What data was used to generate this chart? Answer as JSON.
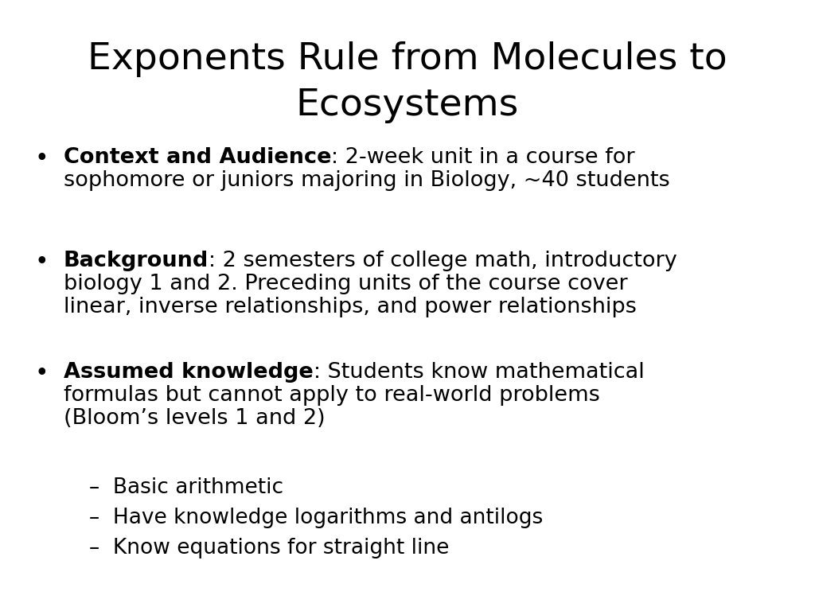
{
  "title_line1": "Exponents Rule from Molecules to",
  "title_line2": "Ecosystems",
  "background_color": "#ffffff",
  "text_color": "#000000",
  "title_fontsize": 34,
  "bullet_fontsize": 19.5,
  "sub_bullet_fontsize": 19,
  "bullets": [
    {
      "bold_part": "Context and Audience",
      "normal_part": ": 2-week unit in a course for\nsophomore or juniors majoring in Biology, ~40 students"
    },
    {
      "bold_part": "Background",
      "normal_part": ": 2 semesters of college math, introductory\nbiology 1 and 2. Preceding units of the course cover\nlinear, inverse relationships, and power relationships"
    },
    {
      "bold_part": "Assumed knowledge",
      "normal_part": ": Students know mathematical\nformulas but cannot apply to real-world problems\n(Bloom’s levels 1 and 2)"
    }
  ],
  "sub_bullets": [
    "–  Basic arithmetic",
    "–  Have knowledge logarithms and antilogs",
    "–  Know equations for straight line"
  ],
  "font_family": "DejaVu Sans"
}
